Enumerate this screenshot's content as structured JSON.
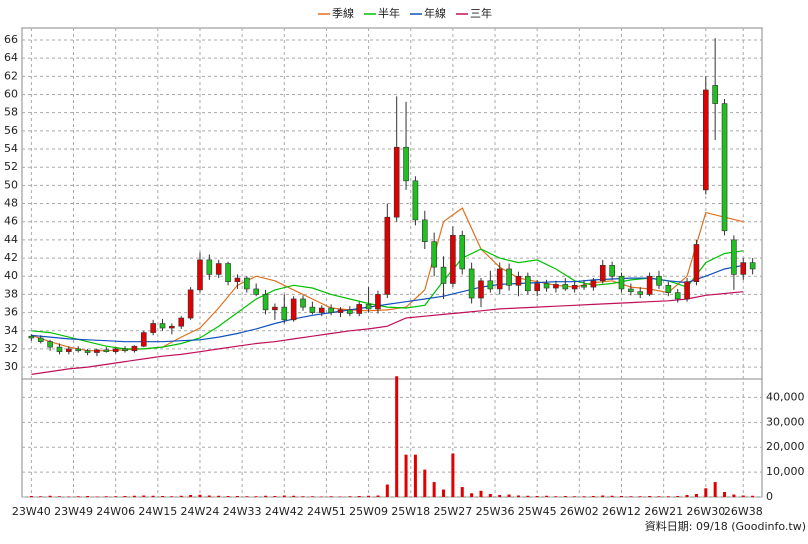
{
  "chart_data": {
    "type": "candlestick",
    "legend": [
      {
        "name": "季線",
        "color": "#e07020"
      },
      {
        "name": "半年",
        "color": "#00c000"
      },
      {
        "name": "年線",
        "color": "#1050c0"
      },
      {
        "name": "三年",
        "color": "#c0105a"
      }
    ],
    "source": "資料日期: 09/18 (Goodinfo.tw)",
    "up_color": "#e00000",
    "down_color": "#20c020",
    "volume_color": "#e00000",
    "grid": true,
    "xlim": [
      -2,
      156
    ],
    "xticks": [
      {
        "value": 0,
        "label": "23W40"
      },
      {
        "value": 9,
        "label": "23W49"
      },
      {
        "value": 18,
        "label": "24W06"
      },
      {
        "value": 27,
        "label": "24W15"
      },
      {
        "value": 36,
        "label": "24W24"
      },
      {
        "value": 45,
        "label": "24W33"
      },
      {
        "value": 54,
        "label": "24W42"
      },
      {
        "value": 63,
        "label": "24W51"
      },
      {
        "value": 72,
        "label": "25W09"
      },
      {
        "value": 81,
        "label": "25W18"
      },
      {
        "value": 90,
        "label": "25W27"
      },
      {
        "value": 99,
        "label": "25W36"
      },
      {
        "value": 108,
        "label": "25W45"
      },
      {
        "value": 117,
        "label": "26W02"
      },
      {
        "value": 126,
        "label": "26W12"
      },
      {
        "value": 135,
        "label": "26W21"
      },
      {
        "value": 144,
        "label": "26W30"
      },
      {
        "value": 152,
        "label": "26W38"
      }
    ],
    "ylim": [
      28.8,
      67.1
    ],
    "yticks": [
      30,
      32,
      34,
      36,
      38,
      40,
      42,
      44,
      46,
      48,
      50,
      52,
      54,
      56,
      58,
      60,
      62,
      64,
      66
    ],
    "y2lim": [
      0,
      47000
    ],
    "y2ticks": [
      {
        "value": 0,
        "label": "0"
      },
      {
        "value": 10000,
        "label": "10,000"
      },
      {
        "value": 20000,
        "label": "20,000"
      },
      {
        "value": 30000,
        "label": "30,000"
      },
      {
        "value": 40000,
        "label": "40,000"
      }
    ],
    "candles": {
      "x": [
        0,
        2,
        4,
        6,
        8,
        10,
        12,
        14,
        16,
        18,
        20,
        22,
        24,
        26,
        28,
        30,
        32,
        34,
        36,
        38,
        40,
        42,
        44,
        46,
        48,
        50,
        52,
        54,
        56,
        58,
        60,
        62,
        64,
        66,
        68,
        70,
        72,
        74,
        76,
        78,
        80,
        82,
        84,
        86,
        88,
        90,
        92,
        94,
        96,
        98,
        100,
        102,
        104,
        106,
        108,
        110,
        112,
        114,
        116,
        118,
        120,
        122,
        124,
        126,
        128,
        130,
        132,
        134,
        136,
        138,
        140,
        142,
        144,
        146,
        148,
        150,
        152,
        154
      ],
      "open": [
        33.4,
        33.2,
        32.8,
        32.2,
        31.7,
        32.0,
        31.8,
        31.6,
        31.9,
        31.7,
        32.0,
        31.8,
        32.3,
        33.8,
        34.8,
        34.3,
        34.5,
        35.4,
        38.5,
        41.8,
        40.2,
        41.4,
        39.4,
        39.8,
        38.6,
        38.0,
        36.3,
        36.6,
        35.2,
        37.5,
        36.6,
        36.0,
        36.5,
        36.0,
        36.3,
        35.9,
        36.9,
        36.4,
        38.0,
        46.5,
        54.2,
        50.5,
        46.2,
        43.8,
        41.0,
        39.2,
        44.5,
        40.8,
        37.6,
        39.5,
        38.6,
        40.8,
        39.0,
        40.0,
        38.4,
        39.2,
        38.7,
        39.1,
        38.6,
        39.0,
        38.8,
        39.5,
        41.2,
        40.0,
        38.6,
        38.3,
        38.0,
        40.0,
        39.0,
        38.2,
        37.5,
        39.4,
        49.5,
        61.0,
        59.0,
        44.0,
        40.2,
        41.5
      ],
      "high": [
        33.6,
        33.5,
        33.0,
        32.6,
        32.3,
        32.3,
        32.0,
        32.0,
        32.2,
        32.1,
        32.3,
        32.4,
        34.0,
        35.2,
        35.3,
        34.8,
        35.6,
        38.8,
        42.6,
        42.4,
        41.8,
        41.6,
        40.2,
        40.0,
        39.2,
        38.5,
        37.0,
        38.0,
        37.8,
        37.9,
        37.2,
        36.8,
        36.9,
        36.6,
        36.7,
        37.2,
        38.8,
        38.4,
        48.0,
        59.8,
        59.2,
        51.0,
        47.2,
        44.8,
        42.2,
        45.5,
        45.0,
        41.5,
        39.8,
        40.6,
        41.5,
        41.4,
        40.5,
        40.4,
        39.6,
        39.6,
        39.5,
        39.8,
        39.4,
        39.6,
        39.8,
        41.8,
        41.6,
        40.4,
        39.2,
        38.8,
        40.4,
        40.6,
        39.4,
        38.6,
        39.8,
        44.0,
        62.0,
        66.2,
        59.5,
        44.5,
        42.0,
        42.0
      ],
      "low": [
        32.9,
        32.6,
        31.8,
        31.4,
        31.4,
        31.6,
        31.3,
        31.2,
        31.6,
        31.5,
        31.6,
        31.6,
        32.2,
        33.5,
        34.0,
        33.6,
        34.2,
        35.2,
        38.2,
        39.6,
        39.8,
        39.0,
        38.6,
        38.2,
        37.8,
        35.8,
        35.2,
        34.8,
        35.0,
        36.2,
        35.8,
        35.6,
        35.7,
        35.5,
        35.6,
        35.6,
        36.0,
        35.9,
        37.6,
        46.0,
        49.5,
        45.6,
        43.0,
        40.0,
        37.5,
        38.8,
        40.2,
        37.0,
        36.6,
        38.2,
        38.0,
        38.4,
        37.8,
        38.0,
        37.8,
        38.3,
        38.2,
        38.4,
        38.2,
        38.5,
        38.4,
        39.2,
        39.6,
        38.2,
        37.9,
        37.6,
        37.8,
        38.6,
        37.8,
        37.1,
        37.2,
        39.0,
        49.0,
        55.0,
        44.5,
        38.5,
        39.6,
        40.2
      ],
      "close": [
        33.2,
        32.8,
        32.2,
        31.7,
        32.0,
        31.8,
        31.6,
        31.9,
        31.7,
        32.0,
        31.8,
        32.3,
        33.8,
        34.8,
        34.3,
        34.5,
        35.4,
        38.5,
        41.8,
        40.2,
        41.4,
        39.4,
        39.8,
        38.6,
        38.0,
        36.3,
        36.6,
        35.2,
        37.5,
        36.6,
        36.0,
        36.5,
        36.0,
        36.3,
        35.9,
        36.9,
        36.4,
        38.0,
        46.5,
        54.2,
        50.5,
        46.2,
        43.8,
        41.0,
        39.2,
        44.5,
        40.8,
        37.6,
        39.5,
        38.6,
        40.8,
        39.0,
        40.0,
        38.4,
        39.2,
        38.7,
        39.1,
        38.6,
        39.0,
        38.8,
        39.5,
        41.2,
        40.0,
        38.6,
        38.3,
        38.0,
        40.0,
        39.0,
        38.2,
        37.5,
        39.4,
        43.5,
        60.5,
        59.0,
        45.0,
        40.2,
        41.5,
        40.8
      ],
      "volume": [
        400,
        300,
        500,
        300,
        200,
        300,
        400,
        200,
        300,
        300,
        400,
        500,
        600,
        500,
        400,
        300,
        500,
        800,
        900,
        600,
        500,
        400,
        400,
        300,
        300,
        500,
        400,
        600,
        500,
        300,
        300,
        200,
        300,
        200,
        300,
        400,
        500,
        600,
        5000,
        48500,
        17000,
        17000,
        11000,
        6000,
        3000,
        17500,
        4000,
        1500,
        2500,
        1200,
        800,
        1000,
        600,
        500,
        400,
        500,
        300,
        400,
        300,
        300,
        400,
        600,
        500,
        400,
        300,
        300,
        400,
        300,
        300,
        400,
        800,
        1200,
        3500,
        6000,
        2000,
        1000,
        600,
        500
      ]
    },
    "lines": {
      "x": [
        0,
        4,
        8,
        12,
        16,
        20,
        24,
        28,
        32,
        36,
        40,
        44,
        48,
        52,
        56,
        60,
        64,
        68,
        72,
        76,
        80,
        84,
        88,
        92,
        96,
        100,
        104,
        108,
        112,
        116,
        120,
        124,
        128,
        132,
        136,
        140,
        144,
        148,
        152
      ],
      "series": [
        {
          "values": [
            33.5,
            32.8,
            32.2,
            31.8,
            31.8,
            31.9,
            32.0,
            32.2,
            33.3,
            34.3,
            36.5,
            39.0,
            40.0,
            39.5,
            38.5,
            37.5,
            36.5,
            36.3,
            36.2,
            36.3,
            36.6,
            38.5,
            46.0,
            47.5,
            43.0,
            41.0,
            39.8,
            39.4,
            39.0,
            38.8,
            39.3,
            39.5,
            38.8,
            38.6,
            38.2,
            40.0,
            47.0,
            46.5,
            46.0
          ]
        },
        {
          "values": [
            34.0,
            33.8,
            33.3,
            32.8,
            32.3,
            32.0,
            32.0,
            32.2,
            32.6,
            33.2,
            34.5,
            36.0,
            37.5,
            38.5,
            39.0,
            38.7,
            38.0,
            37.5,
            37.0,
            36.6,
            36.5,
            36.8,
            39.5,
            42.0,
            43.0,
            42.0,
            41.5,
            41.8,
            40.8,
            39.5,
            39.0,
            39.2,
            39.6,
            39.8,
            39.5,
            38.8,
            41.5,
            42.5,
            42.8
          ]
        },
        {
          "values": [
            33.5,
            33.3,
            33.1,
            33.0,
            32.9,
            32.8,
            32.8,
            32.8,
            32.9,
            33.0,
            33.3,
            33.7,
            34.2,
            34.8,
            35.3,
            35.7,
            36.0,
            36.3,
            36.6,
            36.9,
            37.2,
            37.5,
            37.8,
            38.3,
            38.8,
            39.1,
            39.2,
            39.3,
            39.4,
            39.4,
            39.6,
            39.7,
            39.8,
            39.8,
            39.5,
            39.3,
            40.0,
            40.8,
            41.2
          ]
        },
        {
          "values": [
            29.2,
            29.5,
            29.8,
            30.0,
            30.3,
            30.6,
            30.9,
            31.2,
            31.4,
            31.7,
            32.0,
            32.3,
            32.6,
            32.8,
            33.1,
            33.4,
            33.7,
            34.0,
            34.2,
            34.5,
            35.4,
            35.6,
            35.8,
            36.0,
            36.2,
            36.4,
            36.5,
            36.6,
            36.7,
            36.8,
            36.9,
            37.0,
            37.1,
            37.2,
            37.3,
            37.5,
            37.9,
            38.1,
            38.3
          ]
        }
      ]
    }
  }
}
